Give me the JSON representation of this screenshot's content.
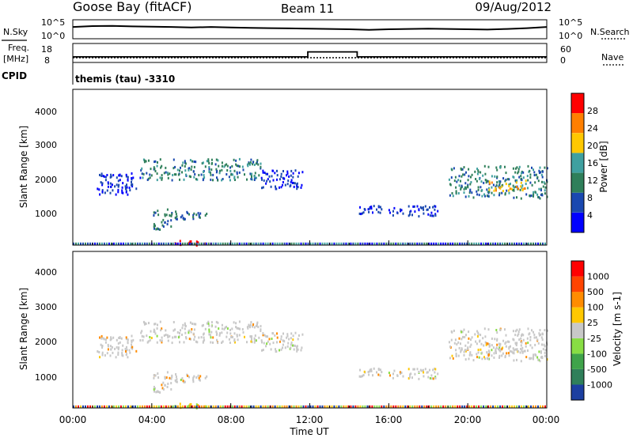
{
  "header": {
    "radar": "Goose Bay (fitACF)",
    "beam": "Beam 11",
    "date": "09/Aug/2012"
  },
  "noise_panel": {
    "left_label": "N.Sky",
    "left_ticks": [
      "10^5",
      "10^0"
    ],
    "right_ticks": [
      "10^5",
      "10^0"
    ],
    "right_label": "N.Search"
  },
  "freq_panel": {
    "left_label_1": "Freq.",
    "left_label_2": "[MHz]",
    "left_ticks": [
      "18",
      "8"
    ],
    "right_ticks": [
      "60",
      "0"
    ],
    "right_label": "Nave",
    "cpid_label": "CPID",
    "cpid_text": "themis (tau) -3310"
  },
  "panels": {
    "power": {
      "ylabel": "Slant Range [km]",
      "yticks": [
        "4000",
        "3000",
        "2000",
        "1000"
      ],
      "colorbar_label": "Power [dB]",
      "colorbar_ticks": [
        "28",
        "24",
        "20",
        "16",
        "12",
        "8",
        "4"
      ],
      "colors": [
        "#0000ff",
        "#1a48b0",
        "#2f7f5a",
        "#3fa0a0",
        "#ffc800",
        "#ff7f00",
        "#ff0000"
      ]
    },
    "velocity": {
      "ylabel": "Slant Range [km]",
      "yticks": [
        "4000",
        "3000",
        "2000",
        "1000"
      ],
      "colorbar_label": "Velocity [m s-1]",
      "colorbar_ticks": [
        "1000",
        "500",
        "100",
        "25",
        "-25",
        "-100",
        "-500",
        "-1000"
      ],
      "colors": [
        "#1c3fa0",
        "#2f7f5a",
        "#3fa34a",
        "#88dd44",
        "#c8c8c8",
        "#ffc800",
        "#ff8c00",
        "#ff4400",
        "#ff0000"
      ]
    }
  },
  "xaxis": {
    "ticks": [
      "00:00",
      "04:00",
      "08:00",
      "12:00",
      "16:00",
      "20:00",
      "00:00"
    ],
    "label": "Time UT"
  },
  "chart_data": {
    "type": "heatmap",
    "title": "Goose Bay (fitACF) Beam 11 09/Aug/2012",
    "x_range_hours": [
      0,
      24
    ],
    "y_range_km": [
      180,
      4500
    ],
    "noise_sky_log10": [
      [
        0.0,
        3.3
      ],
      [
        1.0,
        3.6
      ],
      [
        2.0,
        3.7
      ],
      [
        3.0,
        3.5
      ],
      [
        4.0,
        3.4
      ],
      [
        5.0,
        3.3
      ],
      [
        6.0,
        3.1
      ],
      [
        7.0,
        3.3
      ],
      [
        8.0,
        3.1
      ],
      [
        9.0,
        3.0
      ],
      [
        10.0,
        2.9
      ],
      [
        11.0,
        2.8
      ],
      [
        12.0,
        2.7
      ],
      [
        13.0,
        2.6
      ],
      [
        14.0,
        2.5
      ],
      [
        15.0,
        2.3
      ],
      [
        16.0,
        2.5
      ],
      [
        17.0,
        2.6
      ],
      [
        18.0,
        2.7
      ],
      [
        19.0,
        2.6
      ],
      [
        20.0,
        2.5
      ],
      [
        21.0,
        2.4
      ],
      [
        22.0,
        2.6
      ],
      [
        23.0,
        2.9
      ],
      [
        24.0,
        3.3
      ]
    ],
    "frequency_mhz": [
      [
        0.0,
        10.3
      ],
      [
        11.9,
        10.3
      ],
      [
        11.9,
        13.8
      ],
      [
        14.4,
        13.8
      ],
      [
        14.4,
        10.3
      ],
      [
        24.0,
        10.3
      ]
    ],
    "nave": [
      [
        0.0,
        10
      ],
      [
        24.0,
        10
      ]
    ],
    "power_echo_regions": [
      {
        "t_start": 1.2,
        "t_end": 3.4,
        "r_min": 1600,
        "r_max": 2200,
        "power_db": 6
      },
      {
        "t_start": 3.4,
        "t_end": 9.5,
        "r_min": 2000,
        "r_max": 2600,
        "power_db": 12
      },
      {
        "t_start": 9.5,
        "t_end": 11.6,
        "r_min": 1750,
        "r_max": 2300,
        "power_db": 6
      },
      {
        "t_start": 4.0,
        "t_end": 5.0,
        "r_min": 600,
        "r_max": 1200,
        "power_db": 10
      },
      {
        "t_start": 5.0,
        "t_end": 6.8,
        "r_min": 900,
        "r_max": 1150,
        "power_db": 10
      },
      {
        "t_start": 5.0,
        "t_end": 6.7,
        "r_min": 180,
        "r_max": 330,
        "power_db": 28
      },
      {
        "t_start": 14.4,
        "t_end": 18.5,
        "r_min": 1000,
        "r_max": 1300,
        "power_db": 6
      },
      {
        "t_start": 19.0,
        "t_end": 24.0,
        "r_min": 1500,
        "r_max": 2400,
        "power_db": 12
      },
      {
        "t_start": 21.0,
        "t_end": 23.0,
        "r_min": 1700,
        "r_max": 2000,
        "power_db": 20
      }
    ],
    "velocity_note_values": [
      25,
      -25
    ]
  }
}
